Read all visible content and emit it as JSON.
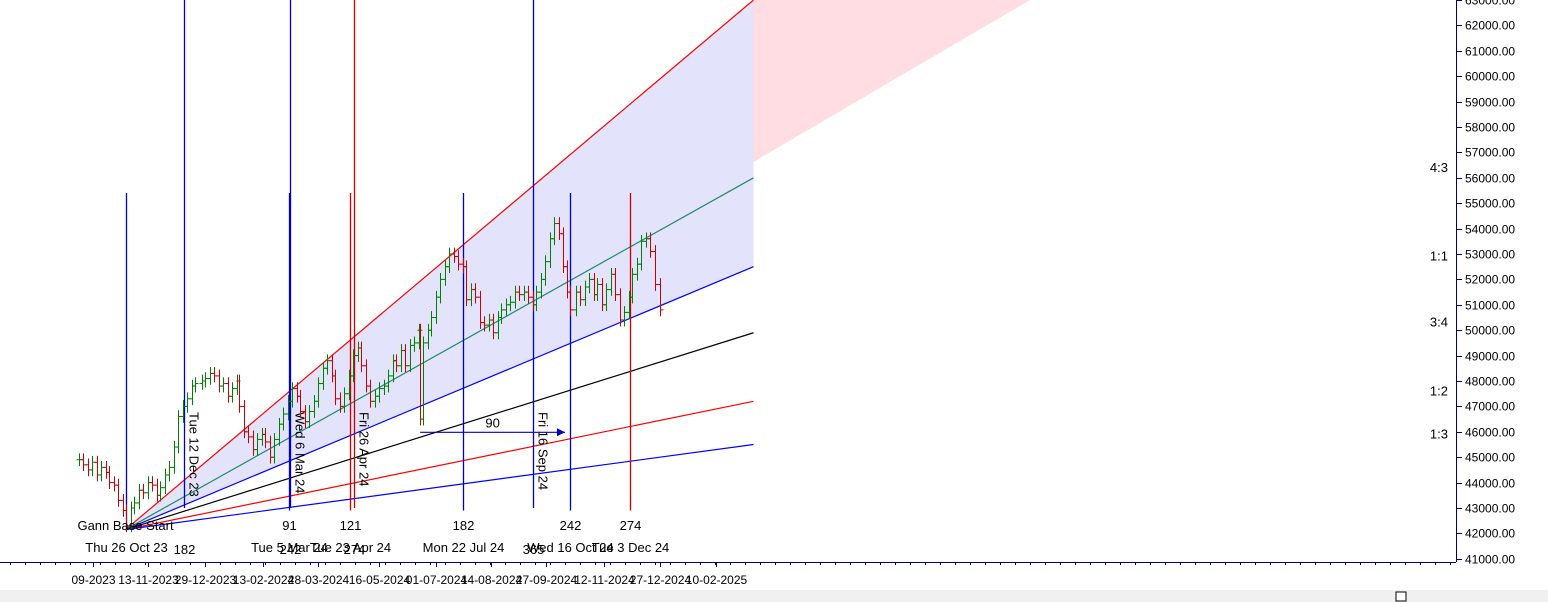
{
  "chart_data": {
    "type": "line",
    "title": "",
    "xlabel": "",
    "ylabel": "",
    "grid": false,
    "y_range": [
      41000,
      63000
    ],
    "x_range": [
      "2023-09-19",
      "2025-03-12"
    ],
    "y_ticks": [
      "41000.00",
      "42000.00",
      "43000.00",
      "44000.00",
      "45000.00",
      "46000.00",
      "47000.00",
      "48000.00",
      "49000.00",
      "50000.00",
      "51000.00",
      "52000.00",
      "53000.00",
      "54000.00",
      "55000.00",
      "56000.00",
      "57000.00",
      "58000.00",
      "59000.00",
      "60000.00",
      "61000.00",
      "62000.00",
      "63000.00"
    ],
    "x_ticks": [
      {
        "date": "2023-09-30",
        "label": "09-2023"
      },
      {
        "date": "2023-11-13",
        "label": "13-11-2023"
      },
      {
        "date": "2023-12-29",
        "label": "29-12-2023"
      },
      {
        "date": "2024-02-13",
        "label": "13-02-2024"
      },
      {
        "date": "2024-03-28",
        "label": "28-03-2024"
      },
      {
        "date": "2024-05-16",
        "label": "16-05-2024"
      },
      {
        "date": "2024-07-01",
        "label": "01-07-2024"
      },
      {
        "date": "2024-08-14",
        "label": "14-08-2024"
      },
      {
        "date": "2024-09-27",
        "label": "27-09-2024"
      },
      {
        "date": "2024-11-12",
        "label": "12-11-2024"
      },
      {
        "date": "2024-12-27",
        "label": "27-12-2024"
      },
      {
        "date": "2025-02-10",
        "label": "10-02-2025"
      }
    ],
    "gann_base": {
      "label": "Gann Base Start",
      "date_label": "Thu 26 Oct 23",
      "date": "2023-10-26",
      "price": 42150
    },
    "gann_lines": [
      {
        "name": "4:3",
        "end_price": 56000,
        "color": "#1f8a6a"
      },
      {
        "name": "1:1",
        "end_price": 52500,
        "color": "#0000ff"
      },
      {
        "name": "3:4",
        "end_price": 49900,
        "color": "#000000"
      },
      {
        "name": "1:2",
        "end_price": 47200,
        "color": "#ff0000"
      },
      {
        "name": "1:3",
        "end_price": 45500,
        "color": "#0000ff"
      }
    ],
    "gann_upper_line": {
      "end_date": "2025-03-12",
      "end_price": 63000,
      "color": "#ff0000"
    },
    "gann_fan_end_date": "2025-03-12",
    "bands": [
      {
        "name": "pink-zone",
        "color": "#ffdde2"
      },
      {
        "name": "lavender-zone",
        "color": "#e3e3fb"
      }
    ],
    "vertical_markers": [
      {
        "date": "2023-10-26",
        "color": "#0000cc",
        "top_price": 55400,
        "bottom_price": 42100,
        "label": "Thu 26 Oct 23",
        "bottom_label": "",
        "number": "",
        "rotated": ""
      },
      {
        "date": "2023-12-12",
        "color": "#0000cc",
        "top_price": 63300,
        "bottom_price": 43000,
        "label": "",
        "bottom_label": "182",
        "number": "",
        "rotated": "Tue 12 Dec 23"
      },
      {
        "date": "2024-03-05",
        "color": "#0000cc",
        "top_price": 55400,
        "bottom_price": 42900,
        "label": "Tue 5 Mar 24",
        "bottom_label": "",
        "number": "91",
        "rotated": ""
      },
      {
        "date": "2024-03-06",
        "color": "#0000cc",
        "top_price": 63300,
        "bottom_price": 43000,
        "label": "",
        "bottom_label": "242",
        "number": "",
        "rotated": "Wed 6 Mar 24"
      },
      {
        "date": "2024-04-23",
        "color": "#cc0000",
        "top_price": 55400,
        "bottom_price": 42900,
        "label": "Tue 23 Apr 24",
        "bottom_label": "",
        "number": "121",
        "rotated": ""
      },
      {
        "date": "2024-04-26",
        "color": "#cc0000",
        "top_price": 63300,
        "bottom_price": 43000,
        "label": "",
        "bottom_label": "274",
        "number": "",
        "rotated": "Fri 26 Apr 24"
      },
      {
        "date": "2024-07-22",
        "color": "#0000cc",
        "top_price": 55400,
        "bottom_price": 42900,
        "label": "Mon 22 Jul 24",
        "bottom_label": "",
        "number": "182",
        "rotated": ""
      },
      {
        "date": "2024-09-16",
        "color": "#0000cc",
        "top_price": 63300,
        "bottom_price": 43000,
        "label": "",
        "bottom_label": "365",
        "number": "",
        "rotated": "Fri 16 Sep 24"
      },
      {
        "date": "2024-10-16",
        "color": "#0000cc",
        "top_price": 55400,
        "bottom_price": 42900,
        "label": "Wed 16 Oct 24",
        "bottom_label": "",
        "number": "242",
        "rotated": ""
      },
      {
        "date": "2024-12-03",
        "color": "#cc0000",
        "top_price": 55400,
        "bottom_price": 42900,
        "label": "Tue 3 Dec 24",
        "bottom_label": "",
        "number": "274",
        "rotated": ""
      }
    ],
    "arrow": {
      "start_date": "2024-06-18",
      "end_date": "2024-10-12",
      "price": 46000,
      "label": "90"
    },
    "price_series": [
      {
        "date": "2023-09-19",
        "close": 44900
      },
      {
        "date": "2023-09-22",
        "close": 44700
      },
      {
        "date": "2023-09-26",
        "close": 44500
      },
      {
        "date": "2023-09-29",
        "close": 44800
      },
      {
        "date": "2023-10-03",
        "close": 44300
      },
      {
        "date": "2023-10-06",
        "close": 44600
      },
      {
        "date": "2023-10-10",
        "close": 44400
      },
      {
        "date": "2023-10-13",
        "close": 44000
      },
      {
        "date": "2023-10-17",
        "close": 43900
      },
      {
        "date": "2023-10-20",
        "close": 43300
      },
      {
        "date": "2023-10-24",
        "close": 42900
      },
      {
        "date": "2023-10-26",
        "close": 42300
      },
      {
        "date": "2023-10-30",
        "close": 43000
      },
      {
        "date": "2023-11-02",
        "close": 43200
      },
      {
        "date": "2023-11-06",
        "close": 43700
      },
      {
        "date": "2023-11-09",
        "close": 43600
      },
      {
        "date": "2023-11-13",
        "close": 44000
      },
      {
        "date": "2023-11-16",
        "close": 43900
      },
      {
        "date": "2023-11-20",
        "close": 43500
      },
      {
        "date": "2023-11-23",
        "close": 43800
      },
      {
        "date": "2023-11-27",
        "close": 44300
      },
      {
        "date": "2023-11-30",
        "close": 44600
      },
      {
        "date": "2023-12-04",
        "close": 45400
      },
      {
        "date": "2023-12-07",
        "close": 46600
      },
      {
        "date": "2023-12-11",
        "close": 47000
      },
      {
        "date": "2023-12-14",
        "close": 47300
      },
      {
        "date": "2023-12-18",
        "close": 47800
      },
      {
        "date": "2023-12-21",
        "close": 47900
      },
      {
        "date": "2023-12-26",
        "close": 48000
      },
      {
        "date": "2023-12-29",
        "close": 48100
      },
      {
        "date": "2024-01-02",
        "close": 48300
      },
      {
        "date": "2024-01-05",
        "close": 48200
      },
      {
        "date": "2024-01-09",
        "close": 47800
      },
      {
        "date": "2024-01-12",
        "close": 47900
      },
      {
        "date": "2024-01-16",
        "close": 47400
      },
      {
        "date": "2024-01-19",
        "close": 47700
      },
      {
        "date": "2024-01-23",
        "close": 48000
      },
      {
        "date": "2024-01-25",
        "close": 47000
      },
      {
        "date": "2024-01-29",
        "close": 46000
      },
      {
        "date": "2024-02-01",
        "close": 45800
      },
      {
        "date": "2024-02-05",
        "close": 45300
      },
      {
        "date": "2024-02-08",
        "close": 45700
      },
      {
        "date": "2024-02-12",
        "close": 45900
      },
      {
        "date": "2024-02-15",
        "close": 45600
      },
      {
        "date": "2024-02-19",
        "close": 45000
      },
      {
        "date": "2024-02-22",
        "close": 45700
      },
      {
        "date": "2024-02-26",
        "close": 46300
      },
      {
        "date": "2024-02-29",
        "close": 46700
      },
      {
        "date": "2024-03-04",
        "close": 47200
      },
      {
        "date": "2024-03-07",
        "close": 47700
      },
      {
        "date": "2024-03-11",
        "close": 47400
      },
      {
        "date": "2024-03-14",
        "close": 46800
      },
      {
        "date": "2024-03-18",
        "close": 46400
      },
      {
        "date": "2024-03-21",
        "close": 46800
      },
      {
        "date": "2024-03-25",
        "close": 47200
      },
      {
        "date": "2024-03-28",
        "close": 47900
      },
      {
        "date": "2024-04-01",
        "close": 48500
      },
      {
        "date": "2024-04-04",
        "close": 48800
      },
      {
        "date": "2024-04-08",
        "close": 48200
      },
      {
        "date": "2024-04-11",
        "close": 47300
      },
      {
        "date": "2024-04-15",
        "close": 47000
      },
      {
        "date": "2024-04-18",
        "close": 47500
      },
      {
        "date": "2024-04-22",
        "close": 48200
      },
      {
        "date": "2024-04-25",
        "close": 49000
      },
      {
        "date": "2024-04-29",
        "close": 49300
      },
      {
        "date": "2024-05-02",
        "close": 48600
      },
      {
        "date": "2024-05-06",
        "close": 47800
      },
      {
        "date": "2024-05-09",
        "close": 47200
      },
      {
        "date": "2024-05-13",
        "close": 47400
      },
      {
        "date": "2024-05-16",
        "close": 47700
      },
      {
        "date": "2024-05-20",
        "close": 47800
      },
      {
        "date": "2024-05-23",
        "close": 48200
      },
      {
        "date": "2024-05-27",
        "close": 48800
      },
      {
        "date": "2024-05-30",
        "close": 48600
      },
      {
        "date": "2024-06-03",
        "close": 49200
      },
      {
        "date": "2024-06-06",
        "close": 48600
      },
      {
        "date": "2024-06-10",
        "close": 49400
      },
      {
        "date": "2024-06-13",
        "close": 49500
      },
      {
        "date": "2024-06-17",
        "close": 50000
      },
      {
        "date": "2024-06-18",
        "close": 46500
      },
      {
        "date": "2024-06-20",
        "close": 49500
      },
      {
        "date": "2024-06-24",
        "close": 50000
      },
      {
        "date": "2024-06-27",
        "close": 50500
      },
      {
        "date": "2024-07-01",
        "close": 51300
      },
      {
        "date": "2024-07-04",
        "close": 52000
      },
      {
        "date": "2024-07-08",
        "close": 52500
      },
      {
        "date": "2024-07-11",
        "close": 53000
      },
      {
        "date": "2024-07-15",
        "close": 52900
      },
      {
        "date": "2024-07-18",
        "close": 52600
      },
      {
        "date": "2024-07-22",
        "close": 52500
      },
      {
        "date": "2024-07-25",
        "close": 51200
      },
      {
        "date": "2024-07-29",
        "close": 51600
      },
      {
        "date": "2024-08-01",
        "close": 51300
      },
      {
        "date": "2024-08-05",
        "close": 50300
      },
      {
        "date": "2024-08-08",
        "close": 50200
      },
      {
        "date": "2024-08-12",
        "close": 50400
      },
      {
        "date": "2024-08-15",
        "close": 49900
      },
      {
        "date": "2024-08-19",
        "close": 50500
      },
      {
        "date": "2024-08-22",
        "close": 50800
      },
      {
        "date": "2024-08-26",
        "close": 51000
      },
      {
        "date": "2024-08-29",
        "close": 51100
      },
      {
        "date": "2024-09-02",
        "close": 51500
      },
      {
        "date": "2024-09-05",
        "close": 51400
      },
      {
        "date": "2024-09-09",
        "close": 51500
      },
      {
        "date": "2024-09-12",
        "close": 51300
      },
      {
        "date": "2024-09-16",
        "close": 51000
      },
      {
        "date": "2024-09-19",
        "close": 51500
      },
      {
        "date": "2024-09-23",
        "close": 52000
      },
      {
        "date": "2024-09-26",
        "close": 52700
      },
      {
        "date": "2024-09-30",
        "close": 53600
      },
      {
        "date": "2024-10-03",
        "close": 54200
      },
      {
        "date": "2024-10-07",
        "close": 53800
      },
      {
        "date": "2024-10-10",
        "close": 52500
      },
      {
        "date": "2024-10-14",
        "close": 51500
      },
      {
        "date": "2024-10-16",
        "close": 50800
      },
      {
        "date": "2024-10-21",
        "close": 51500
      },
      {
        "date": "2024-10-24",
        "close": 51200
      },
      {
        "date": "2024-10-28",
        "close": 51700
      },
      {
        "date": "2024-10-31",
        "close": 52000
      },
      {
        "date": "2024-11-04",
        "close": 51400
      },
      {
        "date": "2024-11-07",
        "close": 51800
      },
      {
        "date": "2024-11-11",
        "close": 51000
      },
      {
        "date": "2024-11-14",
        "close": 51600
      },
      {
        "date": "2024-11-18",
        "close": 52200
      },
      {
        "date": "2024-11-21",
        "close": 51400
      },
      {
        "date": "2024-11-25",
        "close": 50400
      },
      {
        "date": "2024-11-28",
        "close": 50700
      },
      {
        "date": "2024-12-02",
        "close": 51300
      },
      {
        "date": "2024-12-05",
        "close": 52200
      },
      {
        "date": "2024-12-09",
        "close": 52600
      },
      {
        "date": "2024-12-12",
        "close": 53500
      },
      {
        "date": "2024-12-16",
        "close": 53600
      },
      {
        "date": "2024-12-19",
        "close": 53100
      },
      {
        "date": "2024-12-23",
        "close": 51800
      },
      {
        "date": "2024-12-27",
        "close": 50800
      }
    ]
  }
}
